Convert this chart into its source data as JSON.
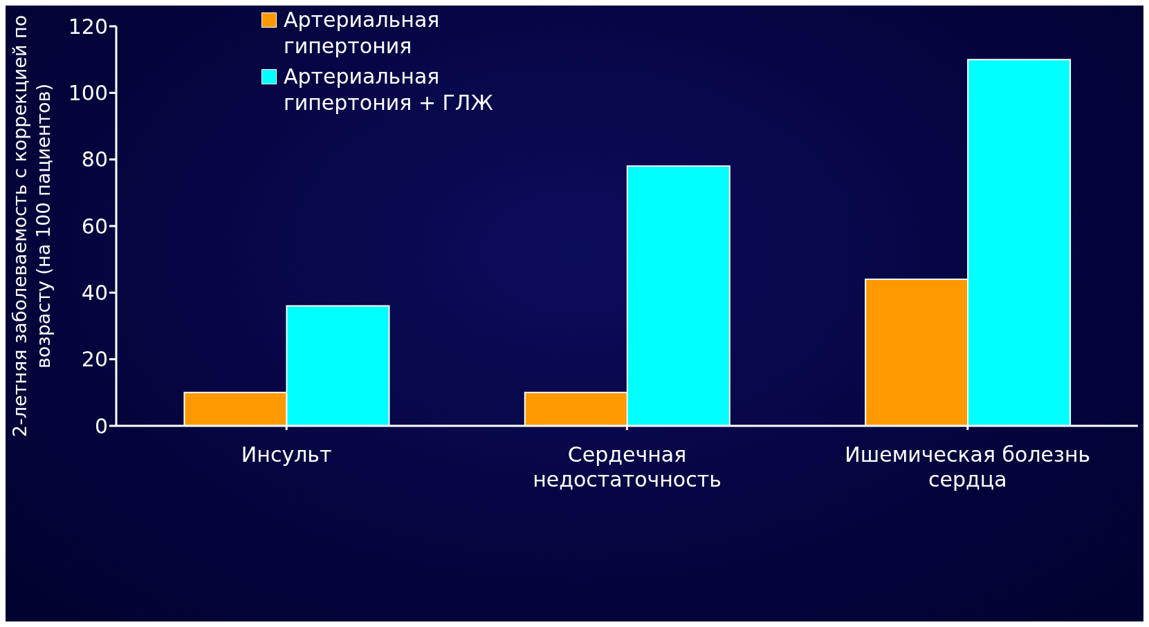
{
  "chart_data": {
    "type": "bar",
    "ylabel": "2-летняя заболеваемость с коррекцией по возрасту (на 100 пациентов)",
    "categories": [
      "Инсульт",
      "Сердечная недостаточность",
      "Ишемическая болезнь сердца"
    ],
    "series": [
      {
        "name": "Артериальная гипертония",
        "color": "#ff9900",
        "values": [
          10,
          10,
          44
        ]
      },
      {
        "name": "Артериальная гипертония + ГЛЖ",
        "color": "#00ffff",
        "values": [
          36,
          78,
          110
        ]
      }
    ],
    "ylim": [
      0,
      120
    ],
    "yticks": [
      0,
      20,
      40,
      60,
      80,
      100,
      120
    ],
    "grid": false,
    "legend": "top left"
  }
}
